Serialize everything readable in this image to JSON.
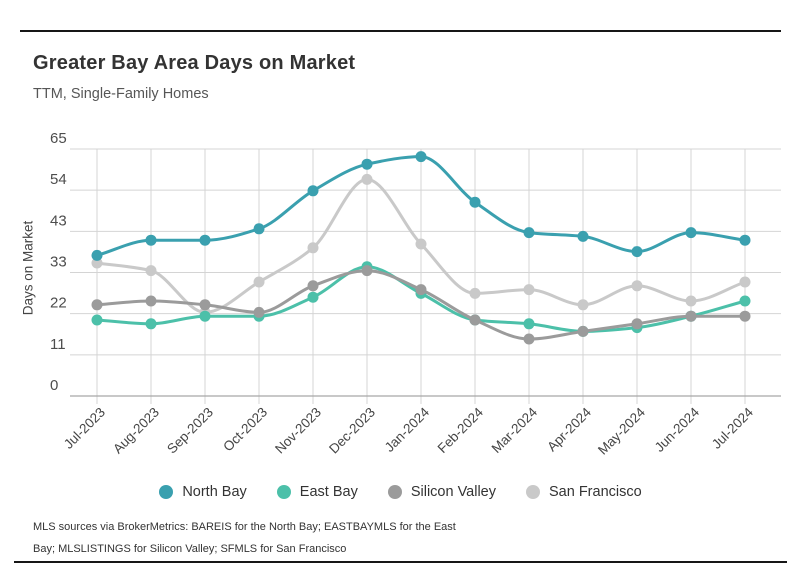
{
  "header": {
    "title": "Greater Bay Area Days on Market",
    "subtitle": "TTM, Single-Family Homes"
  },
  "chart_data": {
    "type": "line",
    "x": [
      "Jul-2023",
      "Aug-2023",
      "Sep-2023",
      "Oct-2023",
      "Nov-2023",
      "Dec-2023",
      "Jan-2024",
      "Feb-2024",
      "Mar-2024",
      "Apr-2024",
      "May-2024",
      "Jun-2024",
      "Jul-2024"
    ],
    "ylabel": "Days on Market",
    "ylim": [
      0,
      65
    ],
    "ytick_labels": [
      "0",
      "11",
      "22",
      "33",
      "43",
      "54",
      "65"
    ],
    "grid": true,
    "legend_position": "bottom",
    "series": [
      {
        "name": "North Bay",
        "color": "#3AA0AF",
        "values": [
          37,
          41,
          41,
          44,
          54,
          61,
          63,
          51,
          43,
          42,
          38,
          43,
          41
        ]
      },
      {
        "name": "East Bay",
        "color": "#4CC0A9",
        "values": [
          20,
          19,
          21,
          21,
          26,
          34,
          27,
          20,
          19,
          17,
          18,
          21,
          25
        ]
      },
      {
        "name": "Silicon Valley",
        "color": "#9B9B9B",
        "values": [
          24,
          25,
          24,
          22,
          29,
          33,
          28,
          20,
          15,
          17,
          19,
          21,
          21
        ]
      },
      {
        "name": "San Francisco",
        "color": "#C9C9C9",
        "values": [
          35,
          33,
          22,
          30,
          39,
          57,
          40,
          27,
          28,
          24,
          29,
          25,
          30
        ]
      }
    ]
  },
  "footer": {
    "line1": "MLS sources via BrokerMetrics: BAREIS for the North Bay; EASTBAYMLS for the East",
    "line2": "Bay; MLSLISTINGS for Silicon Valley; SFMLS for San Francisco"
  }
}
